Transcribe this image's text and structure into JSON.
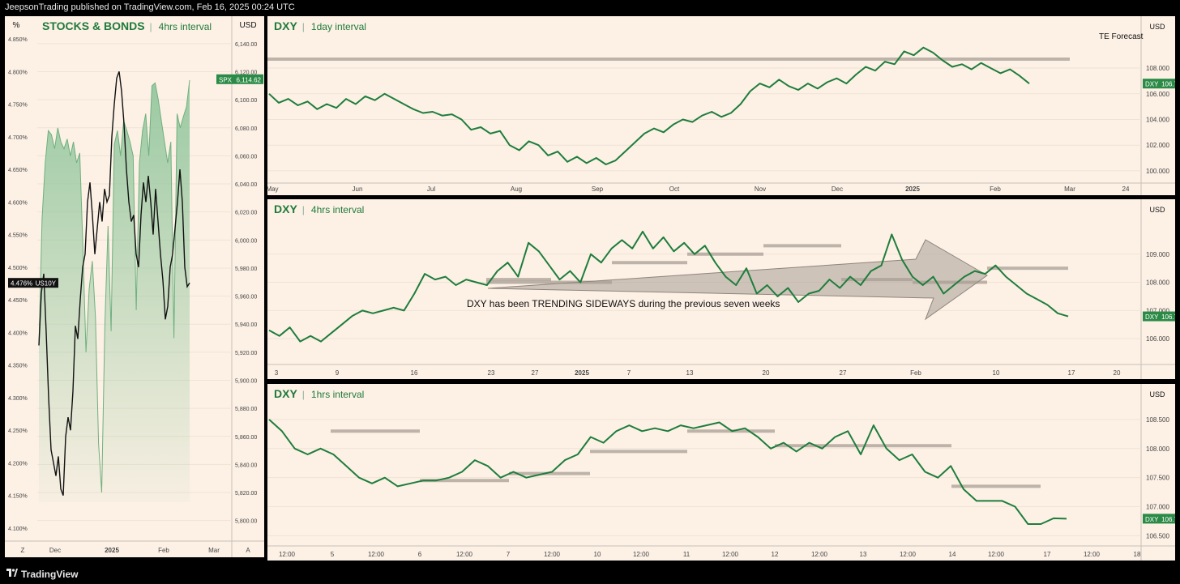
{
  "header": {
    "publish_line": "JeepsonTrading published on TradingView.com, Feb 16, 2025 00:24 UTC"
  },
  "footer": {
    "brand": "TradingView"
  },
  "colors": {
    "dxy": "#1e7d3c",
    "spx_fill": "#8fc59a",
    "us10y": "#111111",
    "panel_bg": "#fdf1e6",
    "level": "#a89d94"
  },
  "chart_data": [
    {
      "type": "area",
      "title": "STOCKS & BONDS",
      "subtitle": "4hrs interval",
      "left_axis_label": "%",
      "right_axis_label": "USD",
      "x_ticks": [
        "Dec",
        "2025",
        "Feb",
        "Mar"
      ],
      "corner_left": "Z",
      "corner_right": "A",
      "y_left_ticks": [
        "4.850%",
        "4.800%",
        "4.750%",
        "4.700%",
        "4.650%",
        "4.600%",
        "4.550%",
        "4.500%",
        "4.450%",
        "4.400%",
        "4.350%",
        "4.300%",
        "4.250%",
        "4.200%",
        "4.150%",
        "4.100%"
      ],
      "y_right_ticks": [
        "6,140.00",
        "6,120.00",
        "6,100.00",
        "6,080.00",
        "6,060.00",
        "6,040.00",
        "6,020.00",
        "6,000.00",
        "5,980.00",
        "5,960.00",
        "5,940.00",
        "5,920.00",
        "5,900.00",
        "5,880.00",
        "5,860.00",
        "5,840.00",
        "5,820.00",
        "5,800.00"
      ],
      "ylim_left": [
        4.09,
        4.86
      ],
      "ylim_right": [
        5790,
        6148
      ],
      "series": [
        {
          "name": "SPX",
          "axis": "right",
          "last": "6,114.62",
          "values": [
            5925,
            6015,
            6055,
            6078,
            6075,
            6065,
            6080,
            6070,
            6065,
            6072,
            6060,
            6070,
            6055,
            6062,
            5995,
            5920,
            5965,
            5985,
            5945,
            5855,
            5820,
            5940,
            6010,
            5935,
            6068,
            6078,
            6060,
            6085,
            6078,
            6070,
            6060,
            5950,
            6055,
            6078,
            6090,
            6060,
            6110,
            6112,
            6100,
            6085,
            6070,
            6055,
            6070,
            5930,
            6090,
            6080,
            6088,
            6095,
            6114
          ]
        },
        {
          "name": "US10Y",
          "axis": "left",
          "last": "4.476%",
          "values": [
            4.38,
            4.46,
            4.49,
            4.4,
            4.3,
            4.22,
            4.2,
            4.18,
            4.21,
            4.16,
            4.15,
            4.24,
            4.27,
            4.25,
            4.31,
            4.41,
            4.39,
            4.45,
            4.5,
            4.52,
            4.6,
            4.63,
            4.58,
            4.52,
            4.56,
            4.6,
            4.57,
            4.62,
            4.6,
            4.61,
            4.7,
            4.75,
            4.79,
            4.8,
            4.77,
            4.72,
            4.65,
            4.6,
            4.57,
            4.58,
            4.52,
            4.5,
            4.58,
            4.63,
            4.6,
            4.64,
            4.6,
            4.55,
            4.62,
            4.57,
            4.52,
            4.48,
            4.42,
            4.44,
            4.5,
            4.52,
            4.56,
            4.6,
            4.65,
            4.6,
            4.5,
            4.47,
            4.476
          ]
        }
      ]
    },
    {
      "type": "line",
      "title": "DXY",
      "subtitle": "1day interval",
      "right_axis_label": "USD",
      "annotation": "TE Forecast",
      "x_ticks": [
        "May",
        "Jun",
        "Jul",
        "Aug",
        "Sep",
        "Oct",
        "Nov",
        "Dec",
        "2025",
        "Feb",
        "Mar",
        "24"
      ],
      "y_ticks": [
        "108.000",
        "106.000",
        "104.000",
        "102.000",
        "100.000"
      ],
      "ylim": [
        99.3,
        110.4
      ],
      "series": [
        {
          "name": "DXY",
          "last": "106.793",
          "values": [
            106.0,
            105.3,
            105.6,
            105.1,
            105.4,
            104.8,
            105.2,
            104.9,
            105.6,
            105.2,
            105.8,
            105.5,
            106.0,
            105.6,
            105.2,
            104.8,
            104.5,
            104.6,
            104.3,
            104.4,
            104.0,
            103.2,
            103.4,
            102.9,
            103.1,
            102.0,
            101.6,
            102.3,
            102.0,
            101.2,
            101.5,
            100.7,
            101.1,
            100.6,
            101.0,
            100.5,
            100.8,
            101.5,
            102.2,
            102.9,
            103.3,
            103.0,
            103.6,
            104.0,
            103.8,
            104.3,
            104.6,
            104.2,
            104.5,
            105.2,
            106.2,
            106.8,
            106.5,
            107.1,
            106.6,
            106.3,
            106.8,
            106.4,
            106.9,
            107.2,
            106.8,
            107.5,
            108.1,
            107.8,
            108.5,
            108.3,
            109.3,
            109.0,
            109.6,
            109.2,
            108.6,
            108.1,
            108.3,
            107.9,
            108.4,
            108.0,
            107.6,
            107.9,
            107.4,
            106.793
          ]
        }
      ],
      "levels": [
        {
          "label": "",
          "value": 108.7
        }
      ]
    },
    {
      "type": "line",
      "title": "DXY",
      "subtitle": "4hrs interval",
      "right_axis_label": "USD",
      "annotation": "DXY has been TRENDING SIDEWAYS during the previous seven weeks",
      "x_ticks": [
        "3",
        "9",
        "16",
        "23",
        "27",
        "2025",
        "7",
        "13",
        "20",
        "27",
        "Feb",
        "10",
        "17",
        "20"
      ],
      "y_ticks": [
        "109.000",
        "108.000",
        "107.000",
        "106.000"
      ],
      "ylim": [
        105.2,
        110.2
      ],
      "series": [
        {
          "name": "DXY",
          "last": "106.793",
          "values": [
            106.3,
            106.1,
            106.4,
            105.9,
            106.1,
            105.9,
            106.2,
            106.5,
            106.8,
            107.0,
            106.9,
            107.0,
            107.1,
            107.0,
            107.6,
            108.3,
            108.1,
            108.2,
            107.9,
            108.1,
            108.0,
            107.9,
            108.4,
            108.7,
            108.2,
            109.4,
            109.1,
            108.6,
            108.1,
            108.4,
            108.0,
            109.0,
            108.7,
            109.2,
            109.5,
            109.2,
            109.8,
            109.2,
            109.6,
            109.1,
            109.4,
            109.0,
            109.3,
            108.7,
            108.2,
            107.9,
            108.5,
            107.6,
            107.9,
            107.5,
            107.8,
            107.3,
            107.6,
            107.7,
            108.1,
            107.8,
            108.2,
            107.9,
            108.4,
            108.6,
            109.7,
            108.8,
            108.2,
            107.9,
            108.2,
            107.6,
            107.9,
            108.2,
            108.4,
            108.3,
            108.6,
            108.2,
            107.9,
            107.6,
            107.4,
            107.2,
            106.9,
            106.793
          ]
        }
      ],
      "levels": [
        {
          "value": 108.1
        },
        {
          "value": 108.0
        },
        {
          "value": 108.7
        },
        {
          "value": 109.0
        },
        {
          "value": 109.3
        },
        {
          "value": 108.1
        },
        {
          "value": 108.0
        },
        {
          "value": 108.5
        }
      ]
    },
    {
      "type": "line",
      "title": "DXY",
      "subtitle": "1hrs interval",
      "right_axis_label": "USD",
      "x_ticks": [
        "12:00",
        "5",
        "12:00",
        "6",
        "12:00",
        "7",
        "12:00",
        "10",
        "12:00",
        "11",
        "12:00",
        "12",
        "12:00",
        "13",
        "12:00",
        "14",
        "12:00",
        "17",
        "12:00",
        "18"
      ],
      "y_ticks": [
        "108.500",
        "108.000",
        "107.500",
        "107.000",
        "106.500"
      ],
      "ylim": [
        106.38,
        108.75
      ],
      "series": [
        {
          "name": "DXY",
          "last": "106.793",
          "values": [
            108.5,
            108.3,
            108.0,
            107.9,
            108.0,
            107.9,
            107.7,
            107.5,
            107.4,
            107.5,
            107.35,
            107.4,
            107.45,
            107.45,
            107.5,
            107.6,
            107.8,
            107.7,
            107.5,
            107.6,
            107.5,
            107.55,
            107.6,
            107.8,
            107.9,
            108.2,
            108.1,
            108.3,
            108.4,
            108.3,
            108.35,
            108.3,
            108.4,
            108.35,
            108.4,
            108.45,
            108.3,
            108.35,
            108.2,
            108.0,
            108.1,
            107.95,
            108.1,
            108.0,
            108.2,
            108.3,
            107.9,
            108.4,
            108.0,
            107.8,
            107.9,
            107.6,
            107.5,
            107.7,
            107.3,
            107.1,
            107.1,
            107.1,
            107.0,
            106.7,
            106.7,
            106.8,
            106.793
          ]
        }
      ],
      "levels": [
        {
          "value": 108.3
        },
        {
          "value": 107.45
        },
        {
          "value": 107.57
        },
        {
          "value": 107.95
        },
        {
          "value": 108.3
        },
        {
          "value": 108.05
        },
        {
          "value": 108.05
        },
        {
          "value": 107.35
        }
      ]
    }
  ]
}
